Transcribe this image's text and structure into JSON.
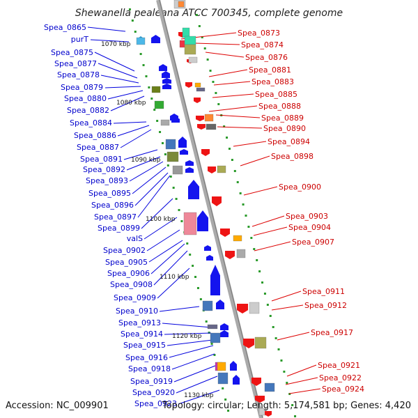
{
  "title": "Shewanella pealeana ATCC 700345, complete genome",
  "accession": "Accession: NC_009901",
  "summary": "Topology: circular; Length: 5,174,581 bp; Genes: 4,420",
  "colors": {
    "forward": "#0000ee",
    "reverse": "#ee0000",
    "backbone": "#999999"
  },
  "kbp_markers": [
    "1070 kbp",
    "1080 kbp",
    "1090 kbp",
    "1100 kbp",
    "1110 kbp",
    "1120 kbp",
    "1130 kbp"
  ],
  "left_labels": [
    "Spea_0865",
    "purT",
    "Spea_0875",
    "Spea_0877",
    "Spea_0878",
    "Spea_0879",
    "Spea_0880",
    "Spea_0882",
    "Spea_0884",
    "Spea_0886",
    "Spea_0887",
    "Spea_0891",
    "Spea_0892",
    "Spea_0893",
    "Spea_0895",
    "Spea_0896",
    "Spea_0897",
    "Spea_0899",
    "valS",
    "Spea_0902",
    "Spea_0905",
    "Spea_0906",
    "Spea_0908",
    "Spea_0909",
    "Spea_0910",
    "Spea_0913",
    "Spea_0914",
    "Spea_0915",
    "Spea_0916",
    "Spea_0918",
    "Spea_0919",
    "Spea_0920",
    "Spea_0923"
  ],
  "right_labels": [
    "Spea_0873",
    "Spea_0874",
    "Spea_0876",
    "Spea_0881",
    "Spea_0883",
    "Spea_0885",
    "Spea_0888",
    "Spea_0889",
    "Spea_0890",
    "Spea_0894",
    "Spea_0898",
    "Spea_0900",
    "Spea_0903",
    "Spea_0904",
    "Spea_0907",
    "Spea_0911",
    "Spea_0912",
    "Spea_0917",
    "Spea_0921",
    "Spea_0922",
    "Spea_0924"
  ]
}
